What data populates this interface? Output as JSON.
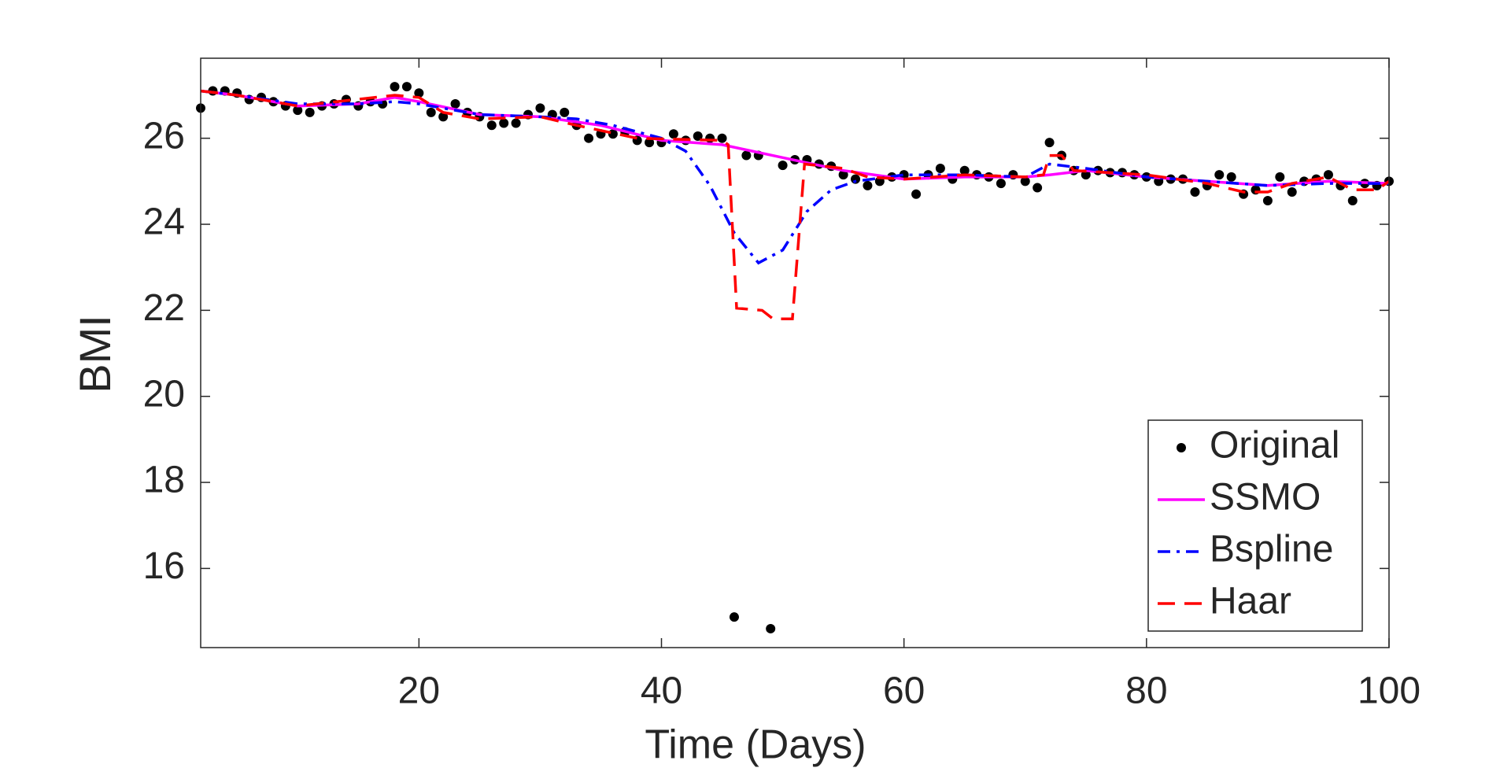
{
  "chart_data": {
    "type": "line",
    "xlabel": "Time (Days)",
    "ylabel": "BMI",
    "xlim": [
      2,
      100
    ],
    "ylim": [
      14.16,
      27.86
    ],
    "xticks": [
      20,
      40,
      60,
      80,
      100
    ],
    "yticks": [
      16,
      18,
      20,
      22,
      24,
      26
    ],
    "legend": "lower right",
    "series": [
      {
        "name": "Original",
        "color": "#000000",
        "marker": "dot",
        "x": [
          2,
          3,
          4,
          5,
          6,
          7,
          8,
          9,
          10,
          11,
          12,
          13,
          14,
          15,
          16,
          17,
          18,
          19,
          20,
          21,
          22,
          23,
          24,
          25,
          26,
          27,
          28,
          29,
          30,
          31,
          32,
          33,
          34,
          35,
          36,
          37,
          38,
          39,
          40,
          41,
          42,
          43,
          44,
          45,
          46,
          47,
          48,
          49,
          50,
          51,
          52,
          53,
          54,
          55,
          56,
          57,
          58,
          59,
          60,
          61,
          62,
          63,
          64,
          65,
          66,
          67,
          68,
          69,
          70,
          71,
          72,
          73,
          74,
          75,
          76,
          77,
          78,
          79,
          80,
          81,
          82,
          83,
          84,
          85,
          86,
          87,
          88,
          89,
          90,
          91,
          92,
          93,
          94,
          95,
          96,
          97,
          98,
          99,
          100
        ],
        "values": [
          26.7,
          27.1,
          27.1,
          27.05,
          26.9,
          26.95,
          26.85,
          26.75,
          26.65,
          26.6,
          26.75,
          26.8,
          26.9,
          26.75,
          26.85,
          26.8,
          27.2,
          27.2,
          27.05,
          26.6,
          26.5,
          26.8,
          26.6,
          26.5,
          26.3,
          26.35,
          26.35,
          26.55,
          26.7,
          26.55,
          26.6,
          26.3,
          26.0,
          26.1,
          26.1,
          26.15,
          25.95,
          25.9,
          25.9,
          26.1,
          25.95,
          26.05,
          26.0,
          26.0,
          14.87,
          25.6,
          25.6,
          14.6,
          25.37,
          25.5,
          25.5,
          25.4,
          25.35,
          25.15,
          25.05,
          24.9,
          25.0,
          25.1,
          25.15,
          24.7,
          25.15,
          25.3,
          25.05,
          25.25,
          25.15,
          25.1,
          24.95,
          25.15,
          25.0,
          24.85,
          25.9,
          25.6,
          25.25,
          25.15,
          25.25,
          25.2,
          25.2,
          25.15,
          25.1,
          25.0,
          25.05,
          25.05,
          24.75,
          24.9,
          25.15,
          25.1,
          24.7,
          24.8,
          24.55,
          25.1,
          24.75,
          25.0,
          25.05,
          25.15,
          24.9,
          24.55,
          24.95,
          24.9,
          25.0
        ]
      },
      {
        "name": "SSMO",
        "color": "#ff00ff",
        "dash": "solid",
        "x": [
          2,
          5,
          10,
          15,
          18,
          20,
          25,
          30,
          35,
          40,
          45,
          50,
          55,
          60,
          65,
          70,
          72,
          75,
          80,
          85,
          90,
          95,
          100
        ],
        "values": [
          27.1,
          27.0,
          26.75,
          26.8,
          26.95,
          26.85,
          26.55,
          26.5,
          26.3,
          25.95,
          25.85,
          25.55,
          25.25,
          25.05,
          25.1,
          25.1,
          25.15,
          25.25,
          25.1,
          25.0,
          24.9,
          25.0,
          24.95
        ]
      },
      {
        "name": "Bspline",
        "color": "#0000ff",
        "dash": "dashdot",
        "x": [
          2,
          5,
          10,
          15,
          18,
          20,
          25,
          30,
          33,
          36,
          40,
          42,
          44,
          46,
          48,
          50,
          52,
          54,
          56,
          60,
          65,
          70,
          72,
          75,
          80,
          85,
          90,
          95,
          100
        ],
        "values": [
          27.1,
          27.0,
          26.8,
          26.8,
          26.85,
          26.8,
          26.55,
          26.5,
          26.45,
          26.3,
          26.0,
          25.7,
          24.9,
          23.8,
          23.1,
          23.4,
          24.3,
          24.8,
          25.0,
          25.15,
          25.15,
          25.1,
          25.4,
          25.3,
          25.1,
          25.0,
          24.9,
          24.95,
          24.95
        ]
      },
      {
        "name": "Haar",
        "color": "#ff0000",
        "dash": "dashed",
        "x": [
          2,
          5,
          10,
          18,
          20,
          22,
          25,
          30,
          33,
          38,
          45,
          45.5,
          46.2,
          48.3,
          49.2,
          50.8,
          51.8,
          55,
          57,
          60,
          65,
          70,
          71.5,
          72,
          73,
          74,
          80,
          85,
          88,
          90,
          92,
          95,
          97,
          99,
          100
        ],
        "values": [
          27.1,
          27.0,
          26.75,
          27.0,
          26.95,
          26.6,
          26.45,
          26.5,
          26.3,
          26.0,
          25.95,
          25.85,
          22.05,
          22.0,
          21.8,
          21.8,
          25.4,
          25.3,
          25.1,
          25.05,
          25.15,
          25.1,
          25.15,
          25.6,
          25.6,
          25.25,
          25.15,
          24.95,
          24.75,
          24.75,
          24.95,
          25.1,
          24.8,
          24.8,
          25.0
        ]
      }
    ]
  }
}
